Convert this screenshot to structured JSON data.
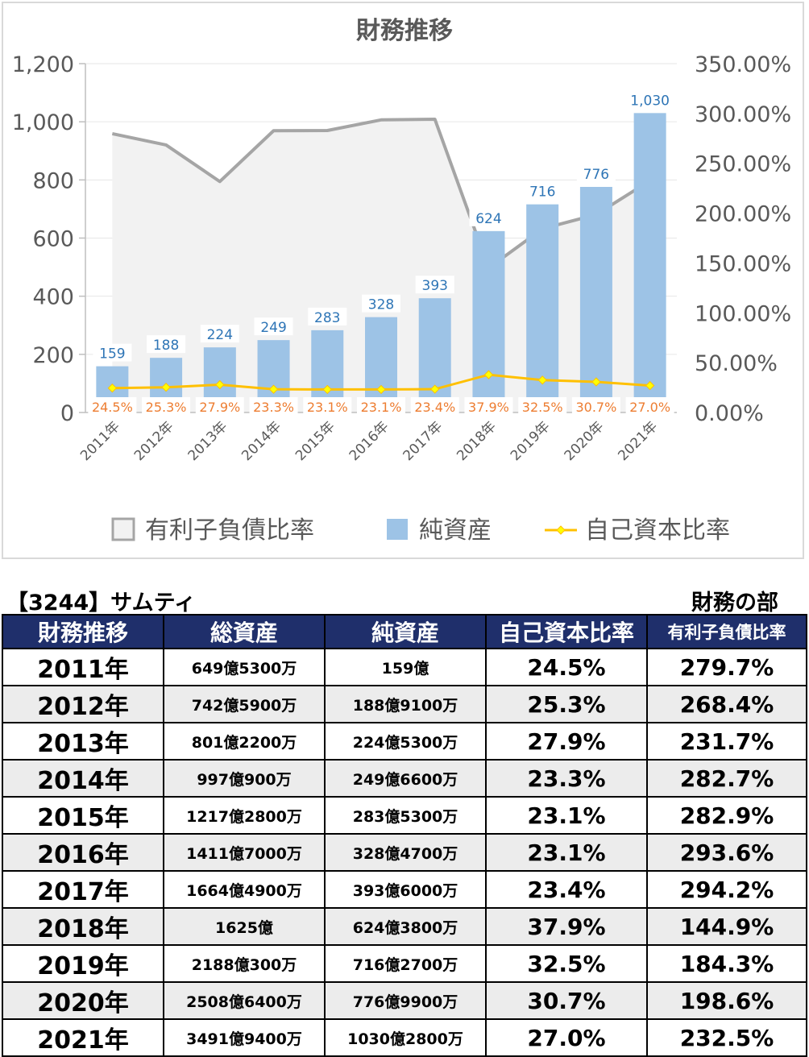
{
  "chart_data": {
    "type": "bar",
    "title": "財務推移",
    "categories": [
      "2011年",
      "2012年",
      "2013年",
      "2014年",
      "2015年",
      "2016年",
      "2017年",
      "2018年",
      "2019年",
      "2020年",
      "2021年"
    ],
    "series": [
      {
        "name": "有利子負債比率",
        "type": "area",
        "axis": "right",
        "values": [
          279.7,
          268.4,
          231.7,
          282.7,
          282.9,
          293.6,
          294.2,
          144.9,
          184.3,
          198.6,
          232.5
        ]
      },
      {
        "name": "純資産",
        "type": "bar",
        "axis": "left",
        "values": [
          159,
          188,
          224,
          249,
          283,
          328,
          393,
          624,
          716,
          776,
          1030
        ],
        "labels": [
          "159",
          "188",
          "224",
          "249",
          "283",
          "328",
          "393",
          "624",
          "716",
          "776",
          "1,030"
        ]
      },
      {
        "name": "自己資本比率",
        "type": "line",
        "axis": "right",
        "values": [
          24.5,
          25.3,
          27.9,
          23.3,
          23.1,
          23.1,
          23.4,
          37.9,
          32.5,
          30.7,
          27.0
        ],
        "labels": [
          "24.5%",
          "25.3%",
          "27.9%",
          "23.3%",
          "23.1%",
          "23.1%",
          "23.4%",
          "37.9%",
          "32.5%",
          "30.7%",
          "27.0%"
        ]
      }
    ],
    "y_left": {
      "ylim": [
        0,
        1200
      ],
      "ticks": [
        0,
        200,
        400,
        600,
        800,
        1000,
        1200
      ],
      "tick_labels": [
        "0",
        "200",
        "400",
        "600",
        "800",
        "1,000",
        "1,200"
      ]
    },
    "y_right": {
      "ylim": [
        0,
        350
      ],
      "ticks": [
        0,
        50,
        100,
        150,
        200,
        250,
        300,
        350
      ],
      "tick_labels": [
        "0.00%",
        "50.00%",
        "100.00%",
        "150.00%",
        "200.00%",
        "250.00%",
        "300.00%",
        "350.00%"
      ]
    },
    "legend_position": "bottom",
    "colors": {
      "area_fill": "#f2f2f2",
      "area_line": "#a5a5a5",
      "bar": "#9dc3e6",
      "line": "#ffc000",
      "marker": "#ffff00",
      "bar_label": "#2e75b6",
      "line_label": "#ed7d31",
      "axis_text": "#595959",
      "axis_line": "#bfbfbf"
    }
  },
  "table": {
    "title": "【3244】サムティ",
    "subtitle": "財務の部",
    "headers": [
      "財務推移",
      "総資産",
      "純資産",
      "自己資本比率",
      "有利子負債比率"
    ],
    "rows": [
      [
        "2011年",
        "649億5300万",
        "159億",
        "24.5%",
        "279.7%"
      ],
      [
        "2012年",
        "742億5900万",
        "188億9100万",
        "25.3%",
        "268.4%"
      ],
      [
        "2013年",
        "801億2200万",
        "224億5300万",
        "27.9%",
        "231.7%"
      ],
      [
        "2014年",
        "997億900万",
        "249億6600万",
        "23.3%",
        "282.7%"
      ],
      [
        "2015年",
        "1217億2800万",
        "283億5300万",
        "23.1%",
        "282.9%"
      ],
      [
        "2016年",
        "1411億7000万",
        "328億4700万",
        "23.1%",
        "293.6%"
      ],
      [
        "2017年",
        "1664億4900万",
        "393億6000万",
        "23.4%",
        "294.2%"
      ],
      [
        "2018年",
        "1625億",
        "624億3800万",
        "37.9%",
        "144.9%"
      ],
      [
        "2019年",
        "2188億300万",
        "716億2700万",
        "32.5%",
        "184.3%"
      ],
      [
        "2020年",
        "2508億6400万",
        "776億9900万",
        "30.7%",
        "198.6%"
      ],
      [
        "2021年",
        "3491億9400万",
        "1030億2800万",
        "27.0%",
        "232.5%"
      ]
    ],
    "header_color": "#1f2f6b"
  }
}
